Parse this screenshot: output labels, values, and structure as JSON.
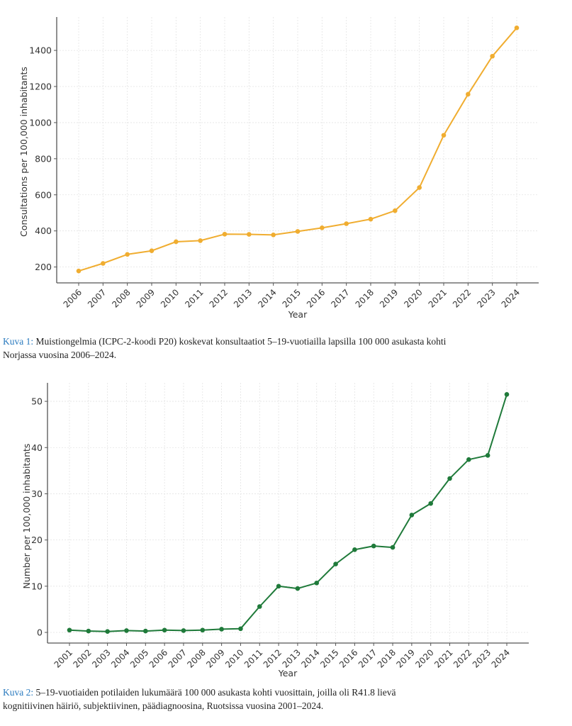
{
  "colors": {
    "series1": "#f0ad30",
    "series2": "#1f7a3a",
    "caption_label": "#2b7bbf"
  },
  "chart_data": [
    {
      "type": "line",
      "title": "",
      "xlabel": "Year",
      "ylabel": "Consultations per 100,000 inhabitants",
      "x": [
        2006,
        2007,
        2008,
        2009,
        2010,
        2011,
        2012,
        2013,
        2014,
        2015,
        2016,
        2017,
        2018,
        2019,
        2020,
        2021,
        2022,
        2023,
        2024
      ],
      "x_tick_labels": [
        "2006",
        "2007",
        "2008",
        "2009",
        "2010",
        "2011",
        "2012",
        "2013",
        "2014",
        "2015",
        "2016",
        "2017",
        "2018",
        "2019",
        "2020",
        "2021",
        "2022",
        "2023",
        "2024"
      ],
      "series": [
        {
          "name": "Consultations",
          "values": [
            178,
            220,
            270,
            290,
            340,
            346,
            382,
            381,
            378,
            397,
            417,
            440,
            465,
            512,
            640,
            930,
            1157,
            1368,
            1525
          ]
        }
      ],
      "yticks": [
        200,
        400,
        600,
        800,
        1000,
        1200,
        1400
      ],
      "ytick_labels": [
        "200",
        "400",
        "600",
        "800",
        "1000",
        "1200",
        "1400"
      ],
      "ylim": [
        112,
        1585
      ],
      "grid": true
    },
    {
      "type": "line",
      "title": "",
      "xlabel": "Year",
      "ylabel": "Number per 100,000 inhabitants",
      "x": [
        2001,
        2002,
        2003,
        2004,
        2005,
        2006,
        2007,
        2008,
        2009,
        2010,
        2011,
        2012,
        2013,
        2014,
        2015,
        2016,
        2017,
        2018,
        2019,
        2020,
        2021,
        2022,
        2023,
        2024
      ],
      "x_tick_labels": [
        "2001",
        "2002",
        "2003",
        "2004",
        "2005",
        "2006",
        "2007",
        "2008",
        "2009",
        "2010",
        "2011",
        "2012",
        "2013",
        "2014",
        "2015",
        "2016",
        "2017",
        "2018",
        "2019",
        "2020",
        "2021",
        "2022",
        "2023",
        "2024"
      ],
      "series": [
        {
          "name": "Patients",
          "values": [
            0.5,
            0.3,
            0.2,
            0.4,
            0.3,
            0.5,
            0.4,
            0.5,
            0.7,
            0.8,
            5.6,
            10.0,
            9.5,
            10.7,
            14.8,
            17.9,
            18.7,
            18.4,
            25.4,
            27.9,
            33.3,
            37.4,
            38.3,
            51.5
          ]
        }
      ],
      "yticks": [
        0,
        10,
        20,
        30,
        40,
        50
      ],
      "ytick_labels": [
        "0",
        "10",
        "20",
        "30",
        "40",
        "50"
      ],
      "ylim": [
        -2.3,
        54
      ],
      "grid": true
    }
  ],
  "captions": {
    "fig1_label": "Kuva 1:",
    "fig1_text_line1": " Muistiongelmia (ICPC-2-koodi P20) koskevat konsultaatiot 5–19-vuotiailla lapsilla 100 000 asukasta kohti",
    "fig1_text_line2": "Norjassa vuosina 2006–2024.",
    "fig2_label": "Kuva 2:",
    "fig2_text_line1": " 5–19-vuotiaiden potilaiden lukumäärä 100 000 asukasta kohti vuosittain, joilla oli R41.8 lievä",
    "fig2_text_line2": "kognitiivinen häiriö, subjektiivinen, päädiagnoosina, Ruotsissa vuosina 2001–2024."
  }
}
